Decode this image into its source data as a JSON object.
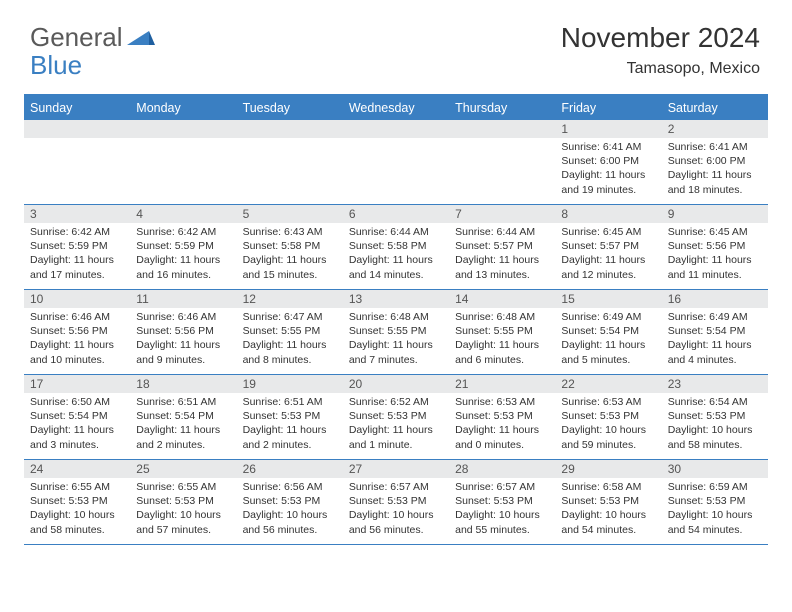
{
  "brand": {
    "part1": "General",
    "part2": "Blue"
  },
  "title": "November 2024",
  "subtitle": "Tamasopo, Mexico",
  "day_headers": [
    "Sunday",
    "Monday",
    "Tuesday",
    "Wednesday",
    "Thursday",
    "Friday",
    "Saturday"
  ],
  "header_bg": "#3a7fc2",
  "header_fg": "#ffffff",
  "daynum_bg": "#e8e9ea",
  "border_color": "#3a7fc2",
  "page_bg": "#ffffff",
  "body_font_size": 10.5,
  "title_font_size": 28,
  "subtitle_font_size": 16,
  "weeks": [
    [
      {
        "n": "",
        "lines": []
      },
      {
        "n": "",
        "lines": []
      },
      {
        "n": "",
        "lines": []
      },
      {
        "n": "",
        "lines": []
      },
      {
        "n": "",
        "lines": []
      },
      {
        "n": "1",
        "lines": [
          "Sunrise: 6:41 AM",
          "Sunset: 6:00 PM",
          "Daylight: 11 hours",
          "and 19 minutes."
        ]
      },
      {
        "n": "2",
        "lines": [
          "Sunrise: 6:41 AM",
          "Sunset: 6:00 PM",
          "Daylight: 11 hours",
          "and 18 minutes."
        ]
      }
    ],
    [
      {
        "n": "3",
        "lines": [
          "Sunrise: 6:42 AM",
          "Sunset: 5:59 PM",
          "Daylight: 11 hours",
          "and 17 minutes."
        ]
      },
      {
        "n": "4",
        "lines": [
          "Sunrise: 6:42 AM",
          "Sunset: 5:59 PM",
          "Daylight: 11 hours",
          "and 16 minutes."
        ]
      },
      {
        "n": "5",
        "lines": [
          "Sunrise: 6:43 AM",
          "Sunset: 5:58 PM",
          "Daylight: 11 hours",
          "and 15 minutes."
        ]
      },
      {
        "n": "6",
        "lines": [
          "Sunrise: 6:44 AM",
          "Sunset: 5:58 PM",
          "Daylight: 11 hours",
          "and 14 minutes."
        ]
      },
      {
        "n": "7",
        "lines": [
          "Sunrise: 6:44 AM",
          "Sunset: 5:57 PM",
          "Daylight: 11 hours",
          "and 13 minutes."
        ]
      },
      {
        "n": "8",
        "lines": [
          "Sunrise: 6:45 AM",
          "Sunset: 5:57 PM",
          "Daylight: 11 hours",
          "and 12 minutes."
        ]
      },
      {
        "n": "9",
        "lines": [
          "Sunrise: 6:45 AM",
          "Sunset: 5:56 PM",
          "Daylight: 11 hours",
          "and 11 minutes."
        ]
      }
    ],
    [
      {
        "n": "10",
        "lines": [
          "Sunrise: 6:46 AM",
          "Sunset: 5:56 PM",
          "Daylight: 11 hours",
          "and 10 minutes."
        ]
      },
      {
        "n": "11",
        "lines": [
          "Sunrise: 6:46 AM",
          "Sunset: 5:56 PM",
          "Daylight: 11 hours",
          "and 9 minutes."
        ]
      },
      {
        "n": "12",
        "lines": [
          "Sunrise: 6:47 AM",
          "Sunset: 5:55 PM",
          "Daylight: 11 hours",
          "and 8 minutes."
        ]
      },
      {
        "n": "13",
        "lines": [
          "Sunrise: 6:48 AM",
          "Sunset: 5:55 PM",
          "Daylight: 11 hours",
          "and 7 minutes."
        ]
      },
      {
        "n": "14",
        "lines": [
          "Sunrise: 6:48 AM",
          "Sunset: 5:55 PM",
          "Daylight: 11 hours",
          "and 6 minutes."
        ]
      },
      {
        "n": "15",
        "lines": [
          "Sunrise: 6:49 AM",
          "Sunset: 5:54 PM",
          "Daylight: 11 hours",
          "and 5 minutes."
        ]
      },
      {
        "n": "16",
        "lines": [
          "Sunrise: 6:49 AM",
          "Sunset: 5:54 PM",
          "Daylight: 11 hours",
          "and 4 minutes."
        ]
      }
    ],
    [
      {
        "n": "17",
        "lines": [
          "Sunrise: 6:50 AM",
          "Sunset: 5:54 PM",
          "Daylight: 11 hours",
          "and 3 minutes."
        ]
      },
      {
        "n": "18",
        "lines": [
          "Sunrise: 6:51 AM",
          "Sunset: 5:54 PM",
          "Daylight: 11 hours",
          "and 2 minutes."
        ]
      },
      {
        "n": "19",
        "lines": [
          "Sunrise: 6:51 AM",
          "Sunset: 5:53 PM",
          "Daylight: 11 hours",
          "and 2 minutes."
        ]
      },
      {
        "n": "20",
        "lines": [
          "Sunrise: 6:52 AM",
          "Sunset: 5:53 PM",
          "Daylight: 11 hours",
          "and 1 minute."
        ]
      },
      {
        "n": "21",
        "lines": [
          "Sunrise: 6:53 AM",
          "Sunset: 5:53 PM",
          "Daylight: 11 hours",
          "and 0 minutes."
        ]
      },
      {
        "n": "22",
        "lines": [
          "Sunrise: 6:53 AM",
          "Sunset: 5:53 PM",
          "Daylight: 10 hours",
          "and 59 minutes."
        ]
      },
      {
        "n": "23",
        "lines": [
          "Sunrise: 6:54 AM",
          "Sunset: 5:53 PM",
          "Daylight: 10 hours",
          "and 58 minutes."
        ]
      }
    ],
    [
      {
        "n": "24",
        "lines": [
          "Sunrise: 6:55 AM",
          "Sunset: 5:53 PM",
          "Daylight: 10 hours",
          "and 58 minutes."
        ]
      },
      {
        "n": "25",
        "lines": [
          "Sunrise: 6:55 AM",
          "Sunset: 5:53 PM",
          "Daylight: 10 hours",
          "and 57 minutes."
        ]
      },
      {
        "n": "26",
        "lines": [
          "Sunrise: 6:56 AM",
          "Sunset: 5:53 PM",
          "Daylight: 10 hours",
          "and 56 minutes."
        ]
      },
      {
        "n": "27",
        "lines": [
          "Sunrise: 6:57 AM",
          "Sunset: 5:53 PM",
          "Daylight: 10 hours",
          "and 56 minutes."
        ]
      },
      {
        "n": "28",
        "lines": [
          "Sunrise: 6:57 AM",
          "Sunset: 5:53 PM",
          "Daylight: 10 hours",
          "and 55 minutes."
        ]
      },
      {
        "n": "29",
        "lines": [
          "Sunrise: 6:58 AM",
          "Sunset: 5:53 PM",
          "Daylight: 10 hours",
          "and 54 minutes."
        ]
      },
      {
        "n": "30",
        "lines": [
          "Sunrise: 6:59 AM",
          "Sunset: 5:53 PM",
          "Daylight: 10 hours",
          "and 54 minutes."
        ]
      }
    ]
  ]
}
